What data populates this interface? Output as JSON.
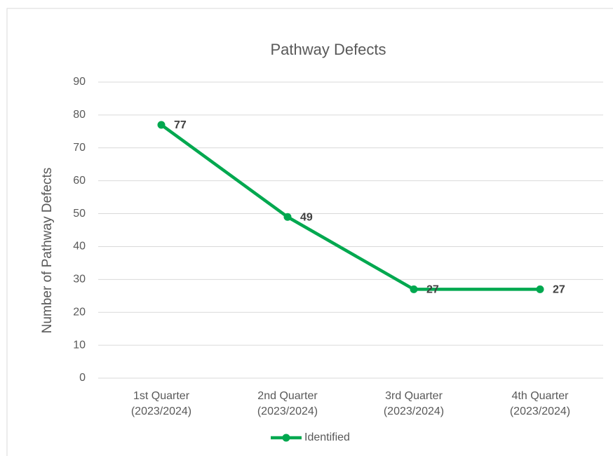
{
  "chart_data": {
    "type": "line",
    "title": "Pathway Defects",
    "y_label": "Number of Pathway Defects",
    "categories": [
      "1st Quarter (2023/2024)",
      "2nd Quarter (2023/2024)",
      "3rd Quarter (2023/2024)",
      "4th Quarter (2023/2024)"
    ],
    "series": [
      {
        "name": "Identified",
        "color": "#00a84f",
        "values": [
          77,
          49,
          27,
          27
        ]
      }
    ],
    "ylim": [
      0,
      90
    ],
    "yticks": [
      0,
      10,
      20,
      30,
      40,
      50,
      60,
      70,
      80,
      90
    ],
    "grid": true,
    "legend": "bottom",
    "data_labels": true
  }
}
